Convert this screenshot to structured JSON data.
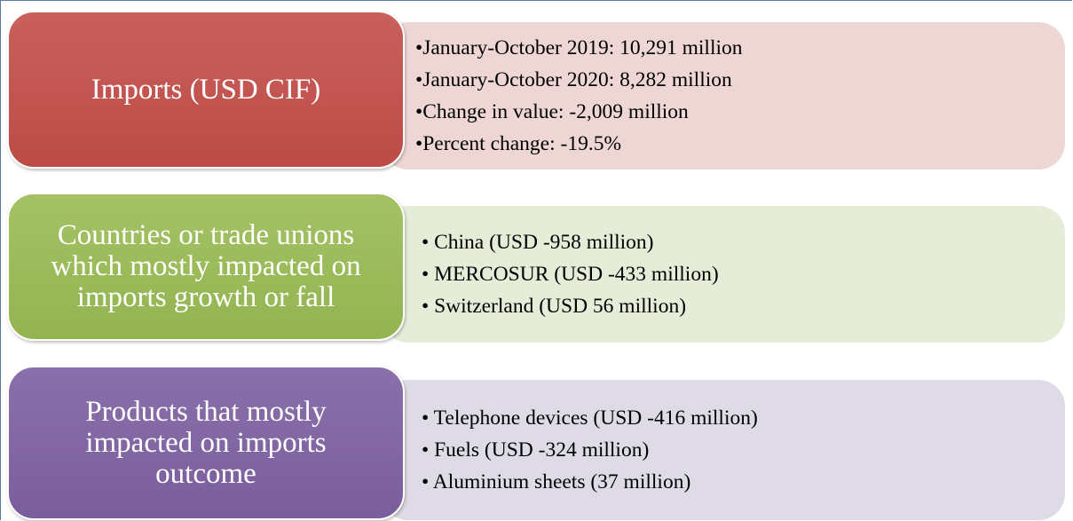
{
  "rows": [
    {
      "label": "Imports (USD CIF)",
      "items": [
        "•January-October 2019: 10,291 million",
        "•January-October 2020: 8,282 million",
        "•Change in value: -2,009 million",
        "•Percent change: -19.5%"
      ]
    },
    {
      "label": "Countries or trade unions which mostly impacted on imports growth or fall",
      "items": [
        "• China (USD -958 million)",
        "• MERCOSUR (USD -433 million)",
        "• Switzerland (USD 56 million)"
      ]
    },
    {
      "label": "Products that mostly impacted on imports outcome",
      "items": [
        "• Telephone devices (USD -416 million)",
        "• Fuels (USD -324 million)",
        "• Aluminium sheets (37 million)"
      ]
    }
  ]
}
